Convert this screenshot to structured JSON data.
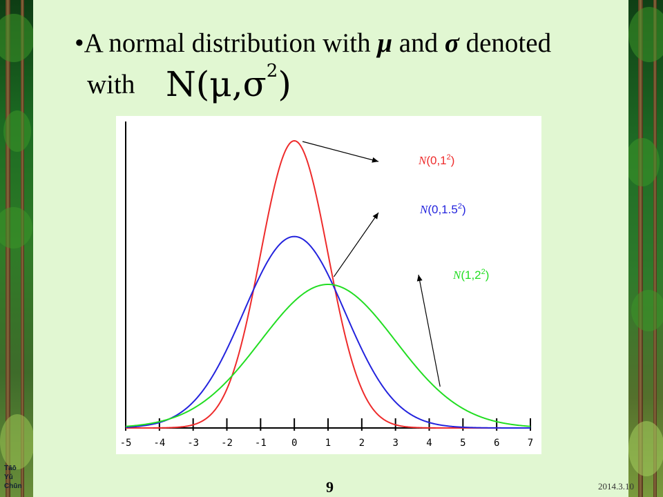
{
  "slide": {
    "bullet": "•",
    "title_before": "A normal distribution with ",
    "mu": "μ",
    "title_middle": " and ",
    "sigma": "σ",
    "title_after": " denoted",
    "with": "with",
    "formula": "N(μ,σ",
    "formula_sup": "2",
    "formula_close": ")",
    "logo_lines": [
      "Tāō",
      "Yǔ",
      "Chūn"
    ],
    "page_number": "9",
    "date": "2014.3.10"
  },
  "chart_data": {
    "type": "line",
    "title": "",
    "xlabel": "",
    "ylabel": "",
    "xlim": [
      -5,
      7
    ],
    "x_ticks": [
      "-5",
      "-4",
      "-3",
      "-2",
      "-1",
      "0",
      "1",
      "2",
      "3",
      "4",
      "5",
      "6",
      "7"
    ],
    "grid": false,
    "series": [
      {
        "name": "N(0,1²)",
        "label_prefix": "N",
        "label_text": "(0,1",
        "label_sup": "2",
        "label_close": ")",
        "mu": 0,
        "sigma": 1,
        "color": "#ee2b2b"
      },
      {
        "name": "N(0,1.5²)",
        "label_prefix": "N",
        "label_text": "(0,1.5",
        "label_sup": "2",
        "label_close": ")",
        "mu": 0,
        "sigma": 1.5,
        "color": "#2323dd"
      },
      {
        "name": "N(1,2²)",
        "label_prefix": "N",
        "label_text": "(1,2",
        "label_sup": "2",
        "label_close": ")",
        "mu": 1,
        "sigma": 2,
        "color": "#22dd22"
      }
    ]
  }
}
